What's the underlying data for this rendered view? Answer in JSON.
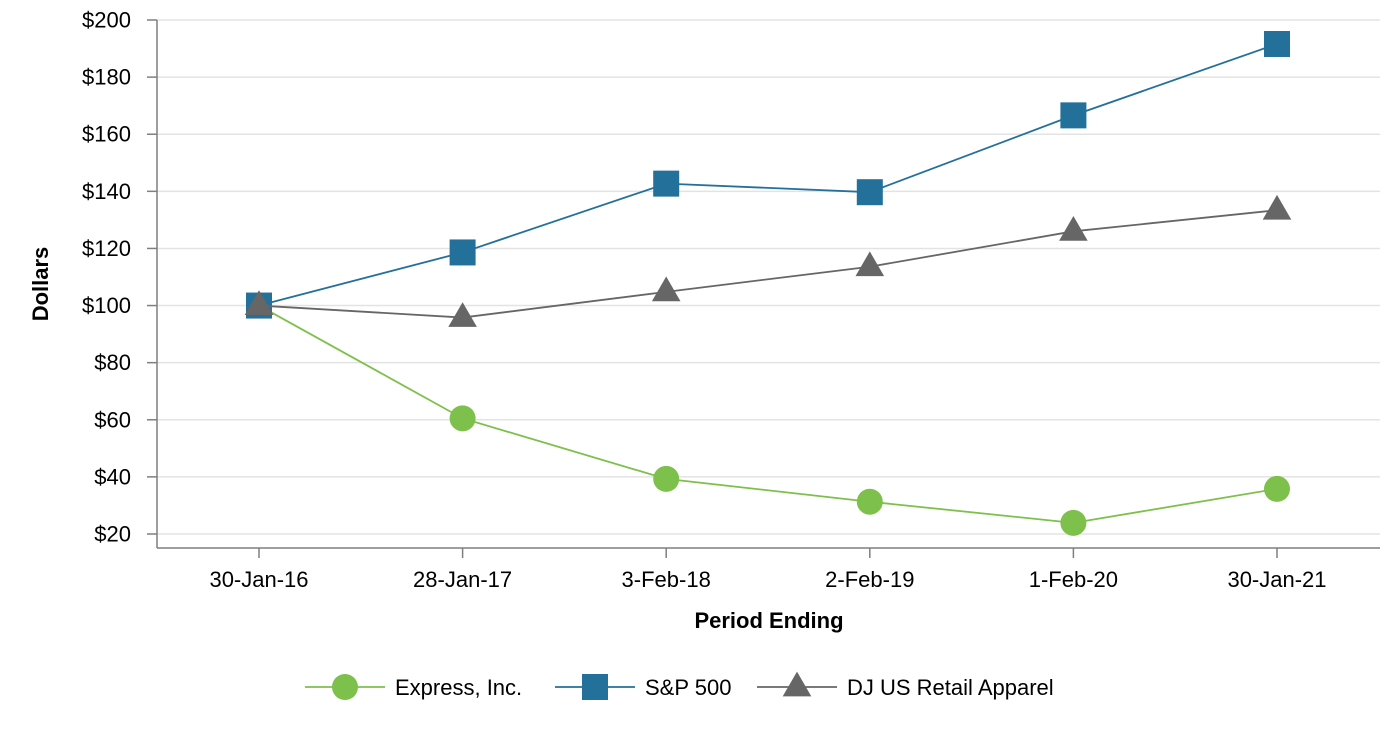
{
  "chart_data": {
    "type": "line",
    "title": "",
    "xlabel": "Period Ending",
    "ylabel": "Dollars",
    "categories": [
      "30-Jan-16",
      "28-Jan-17",
      "3-Feb-18",
      "2-Feb-19",
      "1-Feb-20",
      "30-Jan-21"
    ],
    "ylim": [
      20,
      200
    ],
    "yticks": [
      20,
      40,
      60,
      80,
      100,
      120,
      140,
      160,
      180,
      200
    ],
    "ytick_labels": [
      "$20",
      "$40",
      "$60",
      "$80",
      "$100",
      "$120",
      "$140",
      "$160",
      "$180",
      "$200"
    ],
    "grid": true,
    "legend_position": "bottom",
    "series": [
      {
        "name": "Express, Inc.",
        "marker": "circle",
        "color": "#7dc04b",
        "values": [
          100,
          60.5,
          39.3,
          31.3,
          23.9,
          35.8
        ]
      },
      {
        "name": "S&P 500",
        "marker": "square",
        "color": "#23719a",
        "values": [
          100,
          118.6,
          142.7,
          139.7,
          166.6,
          191.6
        ]
      },
      {
        "name": "DJ US Retail Apparel",
        "marker": "triangle",
        "color": "#666666",
        "values": [
          100,
          95.8,
          104.8,
          113.6,
          126.0,
          133.4
        ]
      }
    ]
  }
}
